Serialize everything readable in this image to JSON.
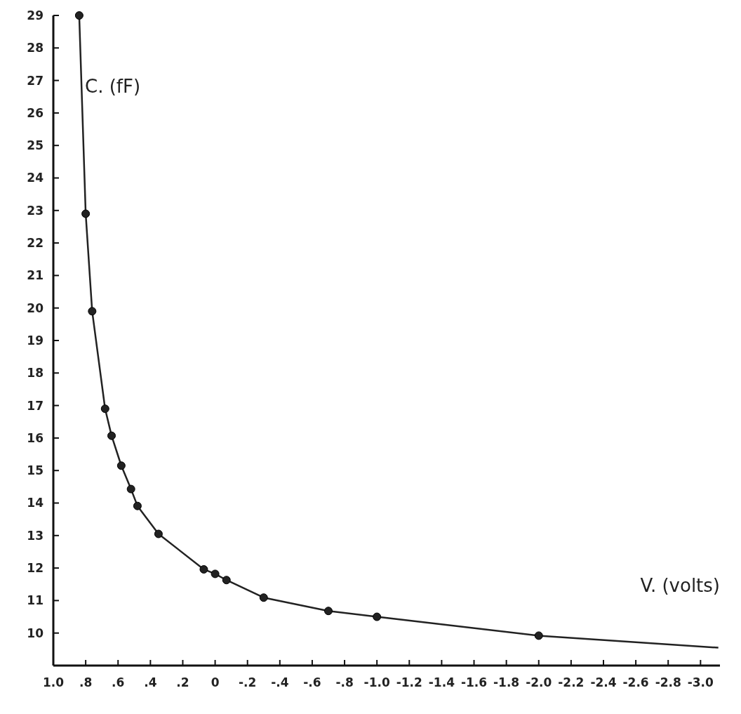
{
  "chart_data": {
    "type": "line",
    "xlabel": "V. (volts)",
    "ylabel": "C. (fF)",
    "xlim": [
      1.0,
      -3.12
    ],
    "ylim": [
      9,
      29
    ],
    "xticks": [
      {
        "value": 1.0,
        "label": "1.0"
      },
      {
        "value": 0.8,
        "label": ".8"
      },
      {
        "value": 0.6,
        "label": ".6"
      },
      {
        "value": 0.4,
        "label": ".4"
      },
      {
        "value": 0.2,
        "label": ".2"
      },
      0,
      {
        "value": -0.2,
        "label": "-.2"
      },
      {
        "value": -0.4,
        "label": "-.4"
      },
      {
        "value": -0.6,
        "label": "-.6"
      },
      {
        "value": -0.8,
        "label": "-.8"
      },
      {
        "value": -1.0,
        "label": "-1.0"
      },
      -1.2,
      -1.4,
      -1.6,
      -1.8,
      {
        "value": -2.0,
        "label": "-2.0"
      },
      -2.2,
      -2.4,
      -2.6,
      -2.8,
      {
        "value": -3.0,
        "label": "-3.0"
      }
    ],
    "yticks": [
      10,
      11,
      12,
      13,
      14,
      15,
      16,
      17,
      18,
      19,
      20,
      21,
      22,
      23,
      24,
      25,
      26,
      27,
      28,
      29
    ],
    "grid": false,
    "series": [
      {
        "marker": "none",
        "color": "#222222",
        "x": [
          0.84,
          0.8,
          0.76,
          0.68,
          0.64,
          0.58,
          0.52,
          0.48,
          0.35,
          0.07,
          0,
          -0.07,
          -0.3,
          -0.7,
          -1.0,
          -2.0,
          -3.11
        ],
        "values": [
          29,
          22.9,
          19.9,
          16.9,
          16.07,
          15.15,
          14.43,
          13.91,
          13.05,
          11.96,
          11.82,
          11.63,
          11.09,
          10.68,
          10.5,
          9.92,
          9.55
        ]
      },
      {
        "type": "scatter",
        "marker": "circle",
        "color": "#222222",
        "x": [
          0.84,
          0.8,
          0.76,
          0.68,
          0.64,
          0.58,
          0.52,
          0.48,
          0.35,
          0.07,
          0,
          -0.07,
          -0.3,
          -0.7,
          -1.0,
          -2.0
        ],
        "values": [
          29,
          22.9,
          19.9,
          16.9,
          16.07,
          15.15,
          14.43,
          13.91,
          13.05,
          11.96,
          11.82,
          11.63,
          11.09,
          10.68,
          10.5,
          9.92
        ]
      }
    ]
  }
}
